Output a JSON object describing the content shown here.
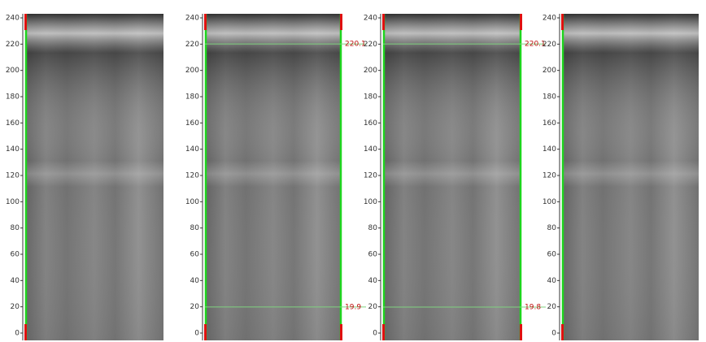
{
  "panels": [
    {
      "ylim": [
        0,
        240
      ],
      "yticks": [
        0,
        20,
        40,
        60,
        80,
        100,
        120,
        140,
        160,
        180,
        200,
        220,
        240
      ],
      "markers": []
    },
    {
      "ylim": [
        0,
        240
      ],
      "yticks": [
        0,
        20,
        40,
        60,
        80,
        100,
        120,
        140,
        160,
        180,
        200,
        220,
        240
      ],
      "markers": [
        {
          "value": 220.1,
          "label": "220.1"
        },
        {
          "value": 19.9,
          "label": "19.9"
        }
      ]
    },
    {
      "ylim": [
        0,
        240
      ],
      "yticks": [
        0,
        20,
        40,
        60,
        80,
        100,
        120,
        140,
        160,
        180,
        200,
        220,
        240
      ],
      "markers": [
        {
          "value": 220.1,
          "label": "220.1"
        },
        {
          "value": 19.8,
          "label": "19.8"
        }
      ]
    },
    {
      "ylim": [
        0,
        240
      ],
      "yticks": [
        0,
        20,
        40,
        60,
        80,
        100,
        120,
        140,
        160,
        180,
        200,
        220,
        240
      ],
      "markers": []
    }
  ]
}
